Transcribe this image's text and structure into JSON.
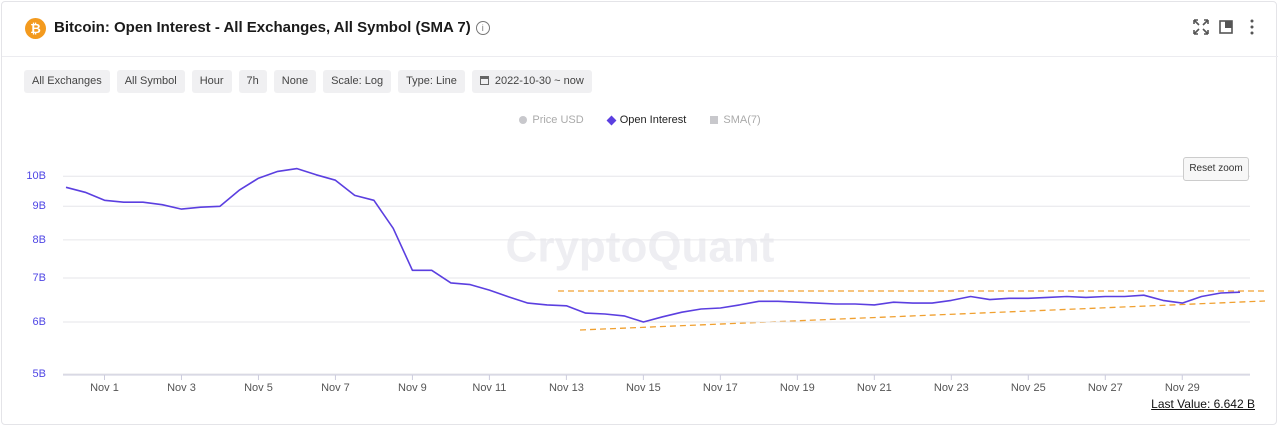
{
  "header": {
    "title": "Bitcoin: Open Interest - All Exchanges, All Symbol (SMA 7)"
  },
  "filters": [
    "All Exchanges",
    "All Symbol",
    "Hour",
    "7h",
    "None",
    "Scale: Log",
    "Type: Line",
    "2022-10-30 ~ now"
  ],
  "reset_zoom": "Reset zoom",
  "watermark": "CryptoQuant",
  "last_value": "Last Value: 6.642 B",
  "chart_data": {
    "type": "line",
    "log_scale": true,
    "grid": true,
    "categories": [
      null,
      null,
      "Nov 1",
      null,
      null,
      null,
      "Nov 3",
      null,
      null,
      null,
      "Nov 5",
      null,
      null,
      null,
      "Nov 7",
      null,
      null,
      null,
      "Nov 9",
      null,
      null,
      null,
      "Nov 11",
      null,
      null,
      null,
      "Nov 13",
      null,
      null,
      null,
      "Nov 15",
      null,
      null,
      null,
      "Nov 17",
      null,
      null,
      null,
      "Nov 19",
      null,
      null,
      null,
      "Nov 21",
      null,
      null,
      null,
      "Nov 23",
      null,
      null,
      null,
      "Nov 25",
      null,
      null,
      null,
      "Nov 27",
      null,
      null,
      null,
      "Nov 29",
      null,
      null,
      null
    ],
    "series": [
      {
        "name": "Open Interest",
        "color": "#5b3fe0",
        "values": [
          9.62,
          9.45,
          9.19,
          9.13,
          9.13,
          9.05,
          8.91,
          8.97,
          9.0,
          9.52,
          9.93,
          10.17,
          10.27,
          10.05,
          9.86,
          9.35,
          9.19,
          8.33,
          7.19,
          7.19,
          6.88,
          6.84,
          6.71,
          6.55,
          6.41,
          6.37,
          6.35,
          6.19,
          6.17,
          6.13,
          6.0,
          6.11,
          6.21,
          6.28,
          6.3,
          6.37,
          6.45,
          6.45,
          6.43,
          6.41,
          6.39,
          6.39,
          6.37,
          6.43,
          6.41,
          6.41,
          6.47,
          6.56,
          6.49,
          6.52,
          6.52,
          6.54,
          6.56,
          6.54,
          6.56,
          6.56,
          6.59,
          6.47,
          6.41,
          6.56,
          6.64,
          6.66
        ]
      }
    ],
    "inactive_legend": [
      {
        "name": "Price USD",
        "color": "#c8c8cc"
      },
      {
        "name": "SMA(7)",
        "color": "#c8c8cc"
      }
    ],
    "ylim": [
      5,
      11
    ],
    "yticks": [
      {
        "value": 5,
        "label": "5B"
      },
      {
        "value": 6,
        "label": "6B"
      },
      {
        "value": 7,
        "label": "7B"
      },
      {
        "value": 8,
        "label": "8B"
      },
      {
        "value": 9,
        "label": "9B"
      },
      {
        "value": 10,
        "label": "10B"
      }
    ]
  }
}
